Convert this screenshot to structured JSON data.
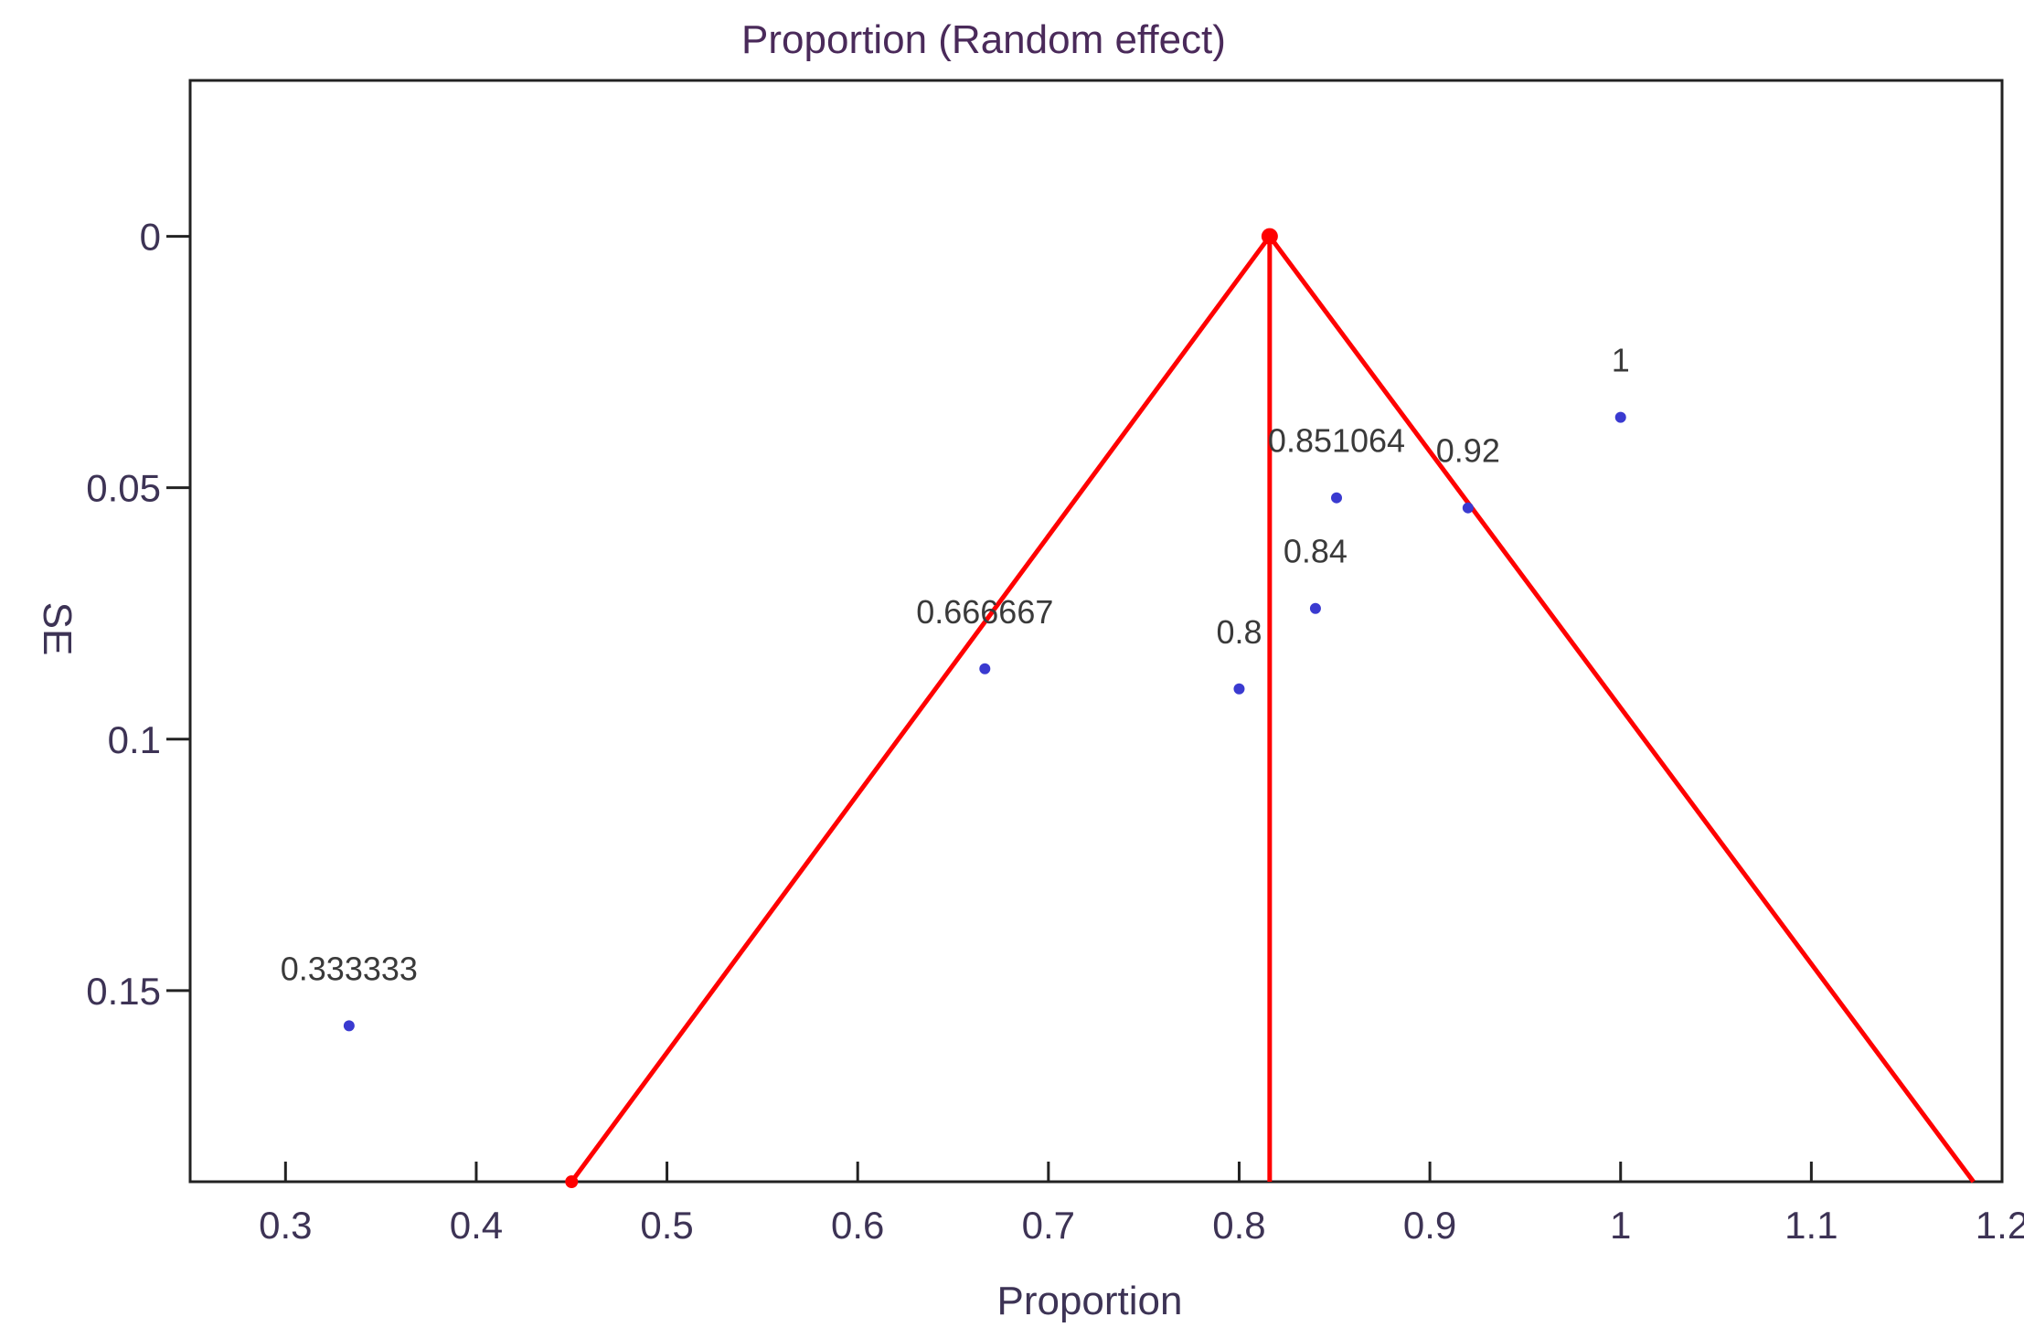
{
  "chart_data": {
    "type": "scatter",
    "title": "Proportion (Random effect)",
    "xlabel": "Proportion",
    "ylabel": "SE",
    "xlim": [
      0.25,
      1.2
    ],
    "ylim": [
      0.188,
      -0.031
    ],
    "x_ticks": [
      0.3,
      0.4,
      0.5,
      0.6,
      0.7,
      0.8,
      0.9,
      1,
      1.1,
      1.2
    ],
    "x_tick_labels": [
      "0.3",
      "0.4",
      "0.5",
      "0.6",
      "0.7",
      "0.8",
      "0.9",
      "1",
      "1.1",
      "1.2"
    ],
    "y_ticks": [
      0,
      0.05,
      0.1,
      0.15
    ],
    "y_tick_labels": [
      "0",
      "0.05",
      "0.1",
      "0.15"
    ],
    "points": [
      {
        "x": 0.333333,
        "y": 0.157,
        "label": "0.333333"
      },
      {
        "x": 0.666667,
        "y": 0.086,
        "label": "0.666667"
      },
      {
        "x": 0.8,
        "y": 0.09,
        "label": "0.8"
      },
      {
        "x": 0.84,
        "y": 0.074,
        "label": "0.84"
      },
      {
        "x": 0.851064,
        "y": 0.052,
        "label": "0.851064"
      },
      {
        "x": 0.92,
        "y": 0.054,
        "label": "0.92"
      },
      {
        "x": 1,
        "y": 0.036,
        "label": "1"
      }
    ],
    "funnel": {
      "pooled_estimate": 0.816,
      "left_bottom_x": 0.45,
      "right_bottom_x": 1.185,
      "bottom_se": 0.188
    },
    "grid": false,
    "colors": {
      "funnel": "#ff0000",
      "points": "#3a3ad0",
      "axes": "#000000"
    }
  }
}
